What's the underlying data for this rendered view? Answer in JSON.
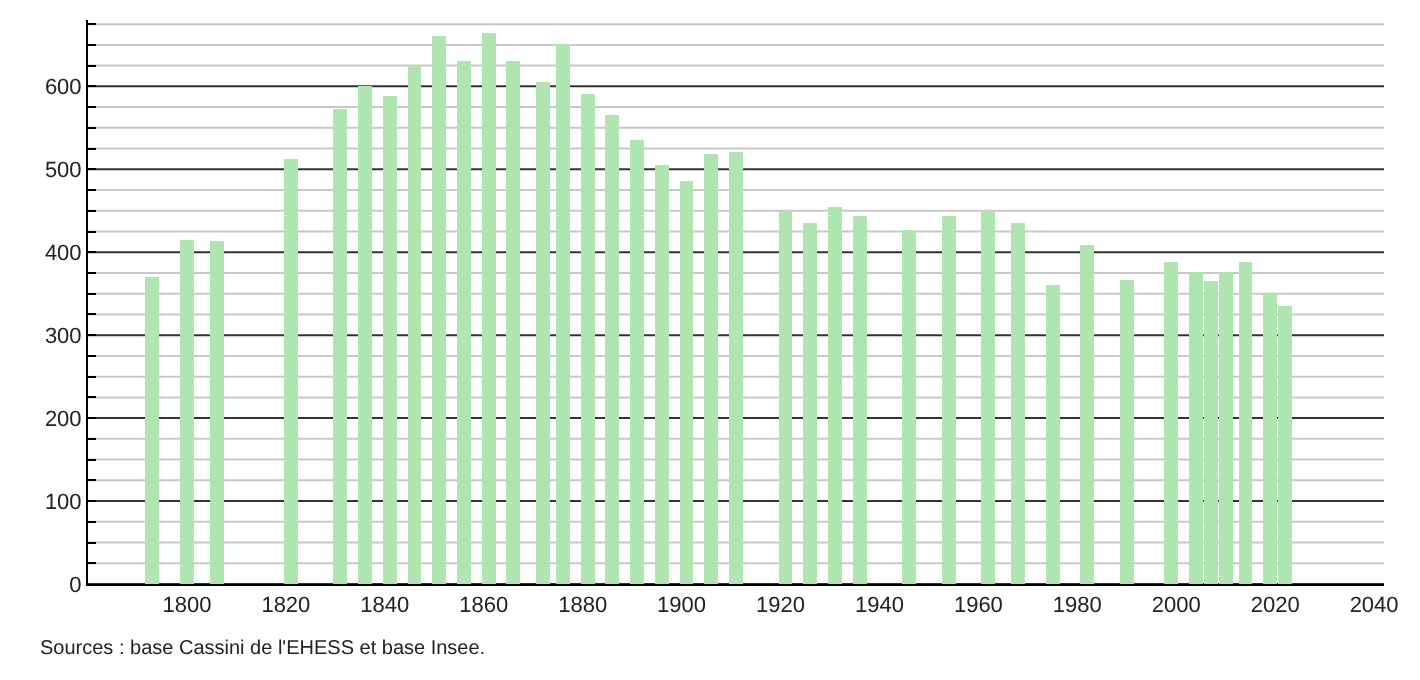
{
  "chart_data": {
    "type": "bar",
    "x": [
      1793,
      1800,
      1806,
      1821,
      1831,
      1836,
      1841,
      1846,
      1851,
      1856,
      1861,
      1866,
      1872,
      1876,
      1881,
      1886,
      1891,
      1896,
      1901,
      1906,
      1911,
      1921,
      1926,
      1931,
      1936,
      1946,
      1954,
      1962,
      1968,
      1975,
      1982,
      1990,
      1999,
      2004,
      2007,
      2010,
      2014,
      2019,
      2022
    ],
    "values": [
      370,
      415,
      413,
      512,
      573,
      600,
      588,
      626,
      661,
      631,
      664,
      631,
      605,
      651,
      591,
      566,
      535,
      505,
      486,
      519,
      521,
      450,
      435,
      454,
      444,
      427,
      444,
      450,
      435,
      360,
      409,
      367,
      388,
      376,
      365,
      376,
      388,
      350,
      335
    ],
    "color": "#b0e4b0",
    "xlim": [
      1780,
      2042
    ],
    "xticks": [
      1800,
      1820,
      1840,
      1860,
      1880,
      1900,
      1920,
      1940,
      1960,
      1980,
      2000,
      2020,
      2040
    ],
    "ylim": [
      0,
      680
    ],
    "yticks": [
      0,
      {
        "value": 25,
        "label": null
      },
      {
        "value": 50,
        "label": null
      },
      {
        "value": 75,
        "label": null
      },
      100,
      {
        "value": 125,
        "label": null
      },
      {
        "value": 150,
        "label": null
      },
      {
        "value": 175,
        "label": null
      },
      200,
      {
        "value": 225,
        "label": null
      },
      {
        "value": 250,
        "label": null
      },
      {
        "value": 275,
        "label": null
      },
      300,
      {
        "value": 325,
        "label": null
      },
      {
        "value": 350,
        "label": null
      },
      {
        "value": 375,
        "label": null
      },
      400,
      {
        "value": 425,
        "label": null
      },
      {
        "value": 450,
        "label": null
      },
      {
        "value": 475,
        "label": null
      },
      500,
      {
        "value": 525,
        "label": null
      },
      {
        "value": 550,
        "label": null
      },
      {
        "value": 575,
        "label": null
      },
      600,
      {
        "value": 625,
        "label": null
      },
      {
        "value": 650,
        "label": null
      },
      {
        "value": 675,
        "label": null
      }
    ],
    "grid": "y",
    "annotations": [
      "Sources : base Cassini de l'EHESS et base Insee."
    ]
  }
}
